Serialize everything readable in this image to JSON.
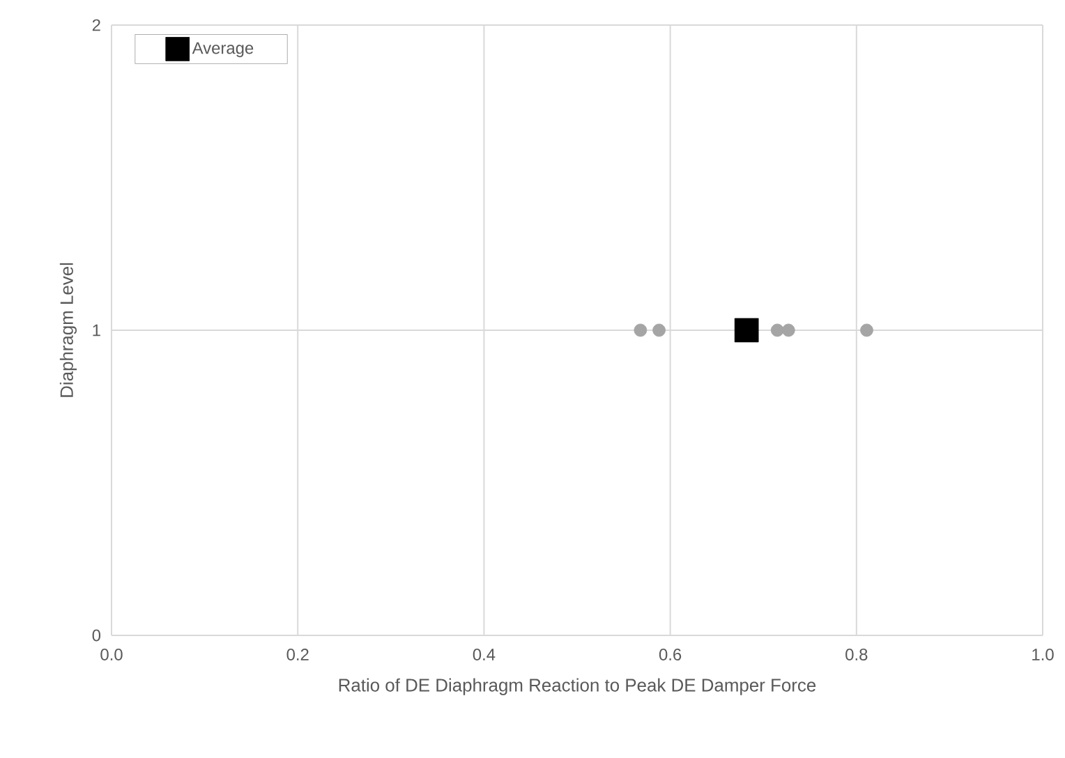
{
  "chart_data": {
    "type": "scatter",
    "xlabel": "Ratio of DE Diaphragm Reaction to Peak DE Damper Force",
    "ylabel": "Diaphragm Level",
    "series": [
      {
        "color": "#a5a5a5",
        "marker": "circle",
        "x": [
          0.568,
          0.588,
          0.715,
          0.727,
          0.811
        ],
        "values": [
          1,
          1,
          1,
          1,
          1
        ]
      },
      {
        "name": "Average",
        "color": "#000000",
        "marker": "square",
        "x": [
          0.682
        ],
        "values": [
          1
        ]
      }
    ],
    "xlim": [
      0,
      1
    ],
    "ylim": [
      0,
      2
    ],
    "xticks": [
      {
        "value": 0,
        "label": "0.0"
      },
      {
        "value": 0.2,
        "label": "0.2"
      },
      {
        "value": 0.4,
        "label": "0.4"
      },
      {
        "value": 0.6,
        "label": "0.6"
      },
      {
        "value": 0.8,
        "label": "0.8"
      },
      {
        "value": 1,
        "label": "1.0"
      }
    ],
    "yticks": [
      0,
      1,
      2
    ],
    "grid": true,
    "legend": "top left"
  }
}
